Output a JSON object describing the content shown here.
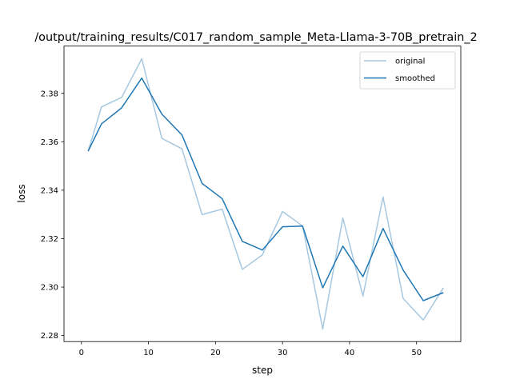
{
  "chart_data": {
    "type": "line",
    "title": "/output/training_results/C017_random_sample_Meta-Llama-3-70B_pretrain_2",
    "xlabel": "step",
    "ylabel": "loss",
    "xlim": [
      -2.6,
      56.6
    ],
    "ylim": [
      2.2775,
      2.3995
    ],
    "xticks": [
      0,
      10,
      20,
      30,
      40,
      50
    ],
    "yticks": [
      2.28,
      2.3,
      2.32,
      2.34,
      2.36,
      2.38
    ],
    "ytick_labels": [
      "2.28",
      "2.30",
      "2.32",
      "2.34",
      "2.36",
      "2.38"
    ],
    "grid": false,
    "legend_position": "top-right",
    "x": [
      1,
      3,
      6,
      9,
      12,
      15,
      18,
      21,
      24,
      27,
      30,
      33,
      36,
      39,
      42,
      45,
      48,
      51,
      54
    ],
    "series": [
      {
        "name": "original",
        "color": "#a6c8e0",
        "values": [
          2.3561,
          2.3744,
          2.3783,
          2.3943,
          2.3614,
          2.3571,
          2.3299,
          2.3322,
          2.3073,
          2.3133,
          2.3312,
          2.3252,
          2.2827,
          2.3285,
          2.2963,
          2.3372,
          2.2953,
          2.2864,
          2.2997
        ]
      },
      {
        "name": "smoothed",
        "color": "#1f77b4",
        "values": [
          2.3561,
          2.3674,
          2.374,
          2.3863,
          2.3714,
          2.3628,
          2.3428,
          2.3365,
          2.3189,
          2.3153,
          2.3249,
          2.3252,
          2.2997,
          2.3169,
          2.3043,
          2.3242,
          2.307,
          2.2944,
          2.2977
        ]
      }
    ]
  }
}
